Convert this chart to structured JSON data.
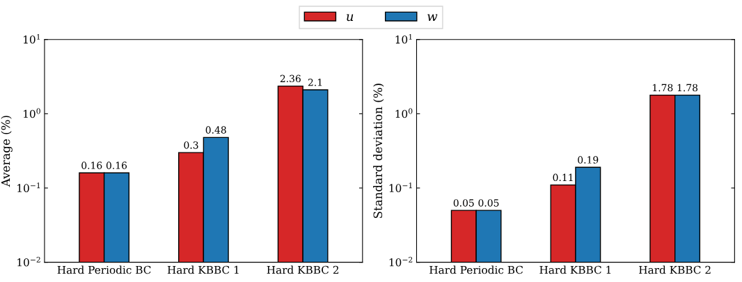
{
  "chart_data": [
    {
      "type": "bar",
      "ylabel": "Average (%)",
      "categories": [
        "Hard Periodic BC",
        "Hard KBBC 1",
        "Hard KBBC 2"
      ],
      "log": "y",
      "ylim": [
        0.01,
        10
      ],
      "yticks": [
        {
          "value": 0.01,
          "label": "10$^{−2}$"
        },
        {
          "value": 0.1,
          "label": "10$^{−1}$"
        },
        {
          "value": 1,
          "label": "10$^{0}$"
        },
        {
          "value": 10,
          "label": "10$^{1}$"
        }
      ],
      "data_labels": true,
      "legend": "top",
      "grid": false,
      "series": [
        {
          "name": "u",
          "color": "#d62728",
          "values": [
            0.16,
            0.3,
            2.36
          ]
        },
        {
          "name": "w",
          "color": "#1f77b4",
          "values": [
            0.16,
            0.48,
            2.1
          ]
        }
      ]
    },
    {
      "type": "bar",
      "ylabel": "Standard deviation (%)",
      "categories": [
        "Hard Periodic BC",
        "Hard KBBC 1",
        "Hard KBBC 2"
      ],
      "log": "y",
      "ylim": [
        0.01,
        10
      ],
      "yticks": [
        {
          "value": 0.01,
          "label": "10$^{−2}$"
        },
        {
          "value": 0.1,
          "label": "10$^{−1}$"
        },
        {
          "value": 1,
          "label": "10$^{0}$"
        },
        {
          "value": 10,
          "label": "10$^{1}$"
        }
      ],
      "data_labels": true,
      "legend": "top",
      "grid": false,
      "series": [
        {
          "name": "u",
          "color": "#d62728",
          "values": [
            0.05,
            0.11,
            1.78
          ]
        },
        {
          "name": "w",
          "color": "#1f77b4",
          "values": [
            0.05,
            0.19,
            1.78
          ]
        }
      ]
    }
  ]
}
